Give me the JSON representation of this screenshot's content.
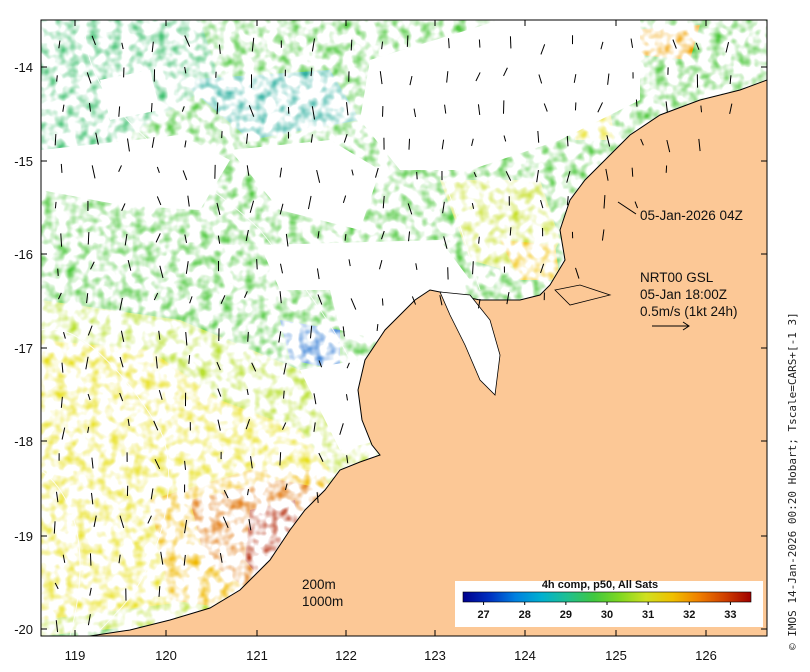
{
  "map": {
    "lon_ticks": [
      "119",
      "120",
      "121",
      "122",
      "123",
      "124",
      "125",
      "126"
    ],
    "lat_ticks": [
      "-14",
      "-15",
      "-16",
      "-17",
      "-18",
      "-19",
      "-20"
    ],
    "lon_range": [
      118.6,
      126.7
    ],
    "lat_range": [
      -20.1,
      -13.45
    ],
    "land_color": "#fcc896",
    "background_color": "#ffffff"
  },
  "annotations": {
    "track_label": "05-Jan-2026 04Z",
    "current_title": "NRT00 GSL",
    "current_time": "05-Jan 18:00Z",
    "current_scale": "0.5m/s (1kt 24h)",
    "isobath_200": "200m",
    "isobath_1000": "1000m"
  },
  "colorbar": {
    "title": "4h comp, p50, All Sats",
    "ticks": [
      "27",
      "28",
      "29",
      "30",
      "31",
      "32",
      "33"
    ],
    "min": 26.5,
    "max": 33.5,
    "colors": [
      "#00008c",
      "#0030c0",
      "#0080e0",
      "#00b0d0",
      "#20c090",
      "#40c840",
      "#80d820",
      "#d0e020",
      "#f0c000",
      "#f08000",
      "#d04000",
      "#a00000"
    ]
  },
  "credit": "© IMOS 14-Jan-2026 00:20 Hobart; Tscale=CARS+[-1 3]"
}
